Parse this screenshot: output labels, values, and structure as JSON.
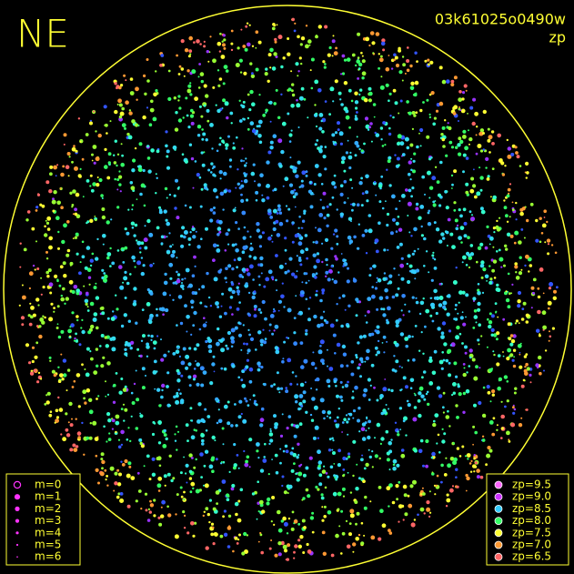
{
  "header": {
    "direction": "NE",
    "frame": "03k61025o0490w",
    "quantity": "zp"
  },
  "magnitude_legend": [
    "m=0",
    "m=1",
    "m=2",
    "m=3",
    "m=4",
    "m=5",
    "m=6"
  ],
  "zp_legend": [
    {
      "label": "zp=9.5",
      "color": "#ff66ff"
    },
    {
      "label": "zp=9.0",
      "color": "#cc33ff"
    },
    {
      "label": "zp=8.5",
      "color": "#33ccff"
    },
    {
      "label": "zp=8.0",
      "color": "#33ff66"
    },
    {
      "label": "zp=7.5",
      "color": "#ffff33"
    },
    {
      "label": "zp=7.0",
      "color": "#ff9933"
    },
    {
      "label": "zp=6.5",
      "color": "#ff6666"
    }
  ]
}
